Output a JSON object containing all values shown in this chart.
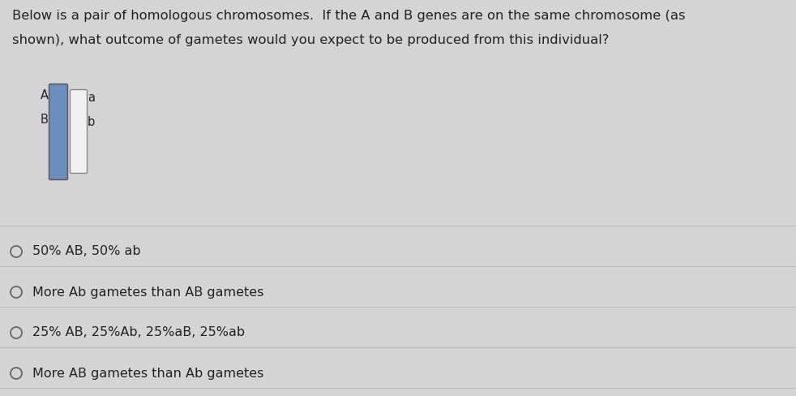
{
  "bg_color": "#d4d4d4",
  "chrom1_color": "#6a8fbf",
  "chrom1_edge": "#555555",
  "chrom2_color": "#f0f0f0",
  "chrom2_edge": "#888888",
  "text_color": "#222222",
  "divider_color": "#bbbbbb",
  "title_line1": "Below is a pair of homologous chromosomes.  If the A and B genes are on the same chromosome (as",
  "title_line2": "shown), what outcome of gametes would you expect to be produced from this individual?",
  "options": [
    "50% AB, 50% ab",
    "More Ab gametes than AB gametes",
    "25% AB, 25%Ab, 25%aB, 25%ab",
    "More AB gametes than Ab gametes"
  ],
  "font_size_title": 11.8,
  "font_size_labels": 10.5,
  "font_size_options": 11.5
}
